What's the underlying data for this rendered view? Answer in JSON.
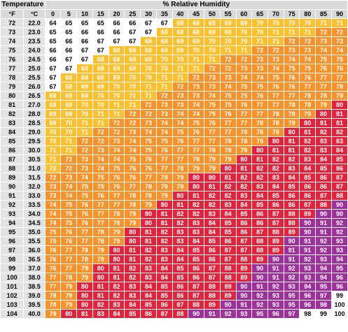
{
  "headers": {
    "temperature": "Temperature",
    "humidity": "% Relative Humidity",
    "unit_f": "°F",
    "unit_c": "°C"
  },
  "humidity_columns": [
    "0",
    "5",
    "10",
    "15",
    "20",
    "25",
    "30",
    "35",
    "40",
    "45",
    "50",
    "55",
    "60",
    "65",
    "70",
    "75",
    "80",
    "85",
    "90"
  ],
  "colors": {
    "none": "#ffffff",
    "caution": "#fcbf2e",
    "extreme_caution": "#f7922a",
    "danger": "#e1243c",
    "extreme_danger": "#9f2f9b"
  },
  "rows": [
    {
      "f": "72",
      "c": "22.0",
      "values": [
        "64",
        "65",
        "65",
        "65",
        "66",
        "66",
        "67",
        "67",
        "68",
        "68",
        "68",
        "69",
        "69",
        "70",
        "70",
        "70",
        "70",
        "71",
        "71"
      ],
      "levels": [
        0,
        0,
        0,
        0,
        0,
        0,
        0,
        0,
        1,
        1,
        1,
        1,
        1,
        1,
        1,
        1,
        1,
        1,
        1
      ]
    },
    {
      "f": "73",
      "c": "23.0",
      "values": [
        "65",
        "65",
        "66",
        "66",
        "66",
        "67",
        "67",
        "68",
        "68",
        "68",
        "69",
        "69",
        "70",
        "70",
        "71",
        "71",
        "71",
        "72",
        "72"
      ],
      "levels": [
        0,
        0,
        0,
        0,
        0,
        0,
        0,
        1,
        1,
        1,
        1,
        1,
        1,
        1,
        1,
        1,
        1,
        2,
        2
      ]
    },
    {
      "f": "74",
      "c": "23.5",
      "values": [
        "65",
        "66",
        "66",
        "67",
        "67",
        "67",
        "68",
        "68",
        "69",
        "69",
        "70",
        "70",
        "70",
        "71",
        "71",
        "72",
        "72",
        "73",
        "73"
      ],
      "levels": [
        0,
        0,
        0,
        0,
        0,
        0,
        1,
        1,
        1,
        1,
        1,
        1,
        1,
        1,
        1,
        2,
        2,
        2,
        2
      ]
    },
    {
      "f": "75",
      "c": "24.0",
      "values": [
        "66",
        "66",
        "67",
        "67",
        "68",
        "68",
        "68",
        "69",
        "69",
        "70",
        "70",
        "71",
        "71",
        "72",
        "72",
        "73",
        "73",
        "74",
        "74"
      ],
      "levels": [
        0,
        0,
        0,
        0,
        1,
        1,
        1,
        1,
        1,
        1,
        1,
        1,
        1,
        2,
        2,
        2,
        2,
        2,
        2
      ]
    },
    {
      "f": "76",
      "c": "24.5",
      "values": [
        "66",
        "67",
        "67",
        "68",
        "68",
        "69",
        "69",
        "70",
        "70",
        "71",
        "71",
        "72",
        "72",
        "73",
        "73",
        "74",
        "74",
        "75",
        "75"
      ],
      "levels": [
        0,
        0,
        0,
        1,
        1,
        1,
        1,
        1,
        1,
        1,
        1,
        2,
        2,
        2,
        2,
        2,
        2,
        2,
        2
      ]
    },
    {
      "f": "77",
      "c": "25.0",
      "values": [
        "67",
        "67",
        "68",
        "68",
        "69",
        "69",
        "70",
        "70",
        "71",
        "71",
        "72",
        "72",
        "73",
        "73",
        "74",
        "75",
        "75",
        "76",
        "76"
      ],
      "levels": [
        0,
        0,
        1,
        1,
        1,
        1,
        1,
        1,
        1,
        1,
        2,
        2,
        2,
        2,
        2,
        2,
        2,
        2,
        2
      ]
    },
    {
      "f": "78",
      "c": "25.5",
      "values": [
        "67",
        "68",
        "68",
        "69",
        "69",
        "70",
        "70",
        "71",
        "71",
        "72",
        "73",
        "73",
        "74",
        "74",
        "75",
        "76",
        "76",
        "77",
        "77"
      ],
      "levels": [
        0,
        1,
        1,
        1,
        1,
        1,
        1,
        1,
        1,
        2,
        2,
        2,
        2,
        2,
        2,
        2,
        2,
        2,
        2
      ]
    },
    {
      "f": "79",
      "c": "26.0",
      "values": [
        "67",
        "68",
        "69",
        "69",
        "70",
        "70",
        "71",
        "71",
        "72",
        "73",
        "73",
        "74",
        "75",
        "75",
        "76",
        "76",
        "77",
        "77",
        "78"
      ],
      "levels": [
        0,
        1,
        1,
        1,
        1,
        1,
        1,
        1,
        2,
        2,
        2,
        2,
        2,
        2,
        2,
        2,
        2,
        2,
        2
      ]
    },
    {
      "f": "80",
      "c": "26.5",
      "values": [
        "68",
        "69",
        "69",
        "70",
        "70",
        "71",
        "71",
        "72",
        "73",
        "73",
        "74",
        "75",
        "75",
        "76",
        "77",
        "77",
        "78",
        "78",
        "79"
      ],
      "levels": [
        1,
        1,
        1,
        1,
        1,
        1,
        1,
        2,
        2,
        2,
        2,
        2,
        2,
        2,
        2,
        2,
        2,
        2,
        2
      ]
    },
    {
      "f": "81",
      "c": "27.0",
      "values": [
        "68",
        "69",
        "70",
        "70",
        "71",
        "71",
        "72",
        "73",
        "73",
        "74",
        "75",
        "75",
        "76",
        "77",
        "77",
        "78",
        "78",
        "79",
        "80"
      ],
      "levels": [
        1,
        1,
        1,
        1,
        1,
        1,
        2,
        2,
        2,
        2,
        2,
        2,
        2,
        2,
        2,
        2,
        2,
        2,
        3
      ]
    },
    {
      "f": "82",
      "c": "28.0",
      "values": [
        "69",
        "69",
        "70",
        "71",
        "71",
        "72",
        "72",
        "73",
        "74",
        "74",
        "75",
        "76",
        "77",
        "77",
        "78",
        "78",
        "79",
        "80",
        "81"
      ],
      "levels": [
        1,
        1,
        1,
        1,
        1,
        2,
        2,
        2,
        2,
        2,
        2,
        2,
        2,
        2,
        2,
        2,
        2,
        3,
        3
      ]
    },
    {
      "f": "83",
      "c": "28.5",
      "values": [
        "69",
        "70",
        "71",
        "71",
        "72",
        "72",
        "73",
        "74",
        "74",
        "75",
        "76",
        "77",
        "77",
        "78",
        "78",
        "79",
        "80",
        "81",
        "81"
      ],
      "levels": [
        1,
        1,
        1,
        1,
        2,
        2,
        2,
        2,
        2,
        2,
        2,
        2,
        2,
        2,
        2,
        2,
        3,
        3,
        3
      ]
    },
    {
      "f": "84",
      "c": "29.0",
      "values": [
        "70",
        "70",
        "71",
        "72",
        "72",
        "73",
        "74",
        "74",
        "75",
        "76",
        "77",
        "77",
        "78",
        "78",
        "79",
        "80",
        "81",
        "82",
        "82"
      ],
      "levels": [
        1,
        1,
        1,
        2,
        2,
        2,
        2,
        2,
        2,
        2,
        2,
        2,
        2,
        2,
        2,
        3,
        3,
        3,
        3
      ]
    },
    {
      "f": "85",
      "c": "29.5",
      "values": [
        "70",
        "71",
        "72",
        "72",
        "73",
        "74",
        "75",
        "75",
        "76",
        "77",
        "77",
        "78",
        "78",
        "79",
        "80",
        "81",
        "82",
        "83",
        "83"
      ],
      "levels": [
        1,
        1,
        2,
        2,
        2,
        2,
        2,
        2,
        2,
        2,
        2,
        2,
        2,
        2,
        3,
        3,
        3,
        3,
        3
      ]
    },
    {
      "f": "86",
      "c": "30.0",
      "values": [
        "71",
        "71",
        "72",
        "73",
        "74",
        "74",
        "75",
        "76",
        "77",
        "77",
        "78",
        "78",
        "79",
        "80",
        "81",
        "81",
        "82",
        "83",
        "84"
      ],
      "levels": [
        1,
        1,
        2,
        2,
        2,
        2,
        2,
        2,
        2,
        2,
        2,
        2,
        2,
        3,
        3,
        3,
        3,
        3,
        3
      ]
    },
    {
      "f": "87",
      "c": "30.5",
      "values": [
        "71",
        "72",
        "73",
        "74",
        "74",
        "75",
        "76",
        "77",
        "77",
        "78",
        "79",
        "79",
        "80",
        "81",
        "82",
        "82",
        "83",
        "84",
        "85"
      ],
      "levels": [
        1,
        2,
        2,
        2,
        2,
        2,
        2,
        2,
        2,
        2,
        2,
        2,
        3,
        3,
        3,
        3,
        3,
        3,
        3
      ]
    },
    {
      "f": "88",
      "c": "31.0",
      "values": [
        "72",
        "72",
        "73",
        "74",
        "75",
        "76",
        "76",
        "77",
        "78",
        "79",
        "79",
        "80",
        "81",
        "82",
        "82",
        "83",
        "84",
        "85",
        "86"
      ],
      "levels": [
        1,
        2,
        2,
        2,
        2,
        2,
        2,
        2,
        2,
        2,
        2,
        3,
        3,
        3,
        3,
        3,
        3,
        3,
        3
      ]
    },
    {
      "f": "89",
      "c": "31.5",
      "values": [
        "72",
        "73",
        "74",
        "75",
        "76",
        "76",
        "77",
        "78",
        "79",
        "80",
        "80",
        "81",
        "82",
        "82",
        "83",
        "84",
        "85",
        "86",
        "87"
      ],
      "levels": [
        2,
        2,
        2,
        2,
        2,
        2,
        2,
        2,
        2,
        3,
        3,
        3,
        3,
        3,
        3,
        3,
        3,
        3,
        3
      ]
    },
    {
      "f": "90",
      "c": "32.0",
      "values": [
        "73",
        "74",
        "75",
        "75",
        "76",
        "77",
        "78",
        "79",
        "79",
        "80",
        "81",
        "82",
        "82",
        "83",
        "84",
        "85",
        "86",
        "86",
        "87"
      ],
      "levels": [
        2,
        2,
        2,
        2,
        2,
        2,
        2,
        2,
        2,
        3,
        3,
        3,
        3,
        3,
        3,
        3,
        3,
        3,
        3
      ]
    },
    {
      "f": "91",
      "c": "33.0",
      "values": [
        "73",
        "74",
        "75",
        "76",
        "77",
        "78",
        "78",
        "79",
        "80",
        "81",
        "82",
        "82",
        "83",
        "84",
        "85",
        "86",
        "86",
        "87",
        "88"
      ],
      "levels": [
        2,
        2,
        2,
        2,
        2,
        2,
        2,
        2,
        3,
        3,
        3,
        3,
        3,
        3,
        3,
        3,
        3,
        3,
        3
      ]
    },
    {
      "f": "92",
      "c": "33.5",
      "values": [
        "74",
        "75",
        "76",
        "77",
        "77",
        "78",
        "79",
        "80",
        "81",
        "82",
        "82",
        "83",
        "84",
        "85",
        "86",
        "86",
        "87",
        "88",
        "90"
      ],
      "levels": [
        2,
        2,
        2,
        2,
        2,
        2,
        2,
        3,
        3,
        3,
        3,
        3,
        3,
        3,
        3,
        3,
        3,
        3,
        4
      ]
    },
    {
      "f": "93",
      "c": "34.0",
      "values": [
        "74",
        "75",
        "76",
        "77",
        "78",
        "79",
        "80",
        "81",
        "82",
        "82",
        "83",
        "84",
        "85",
        "86",
        "87",
        "88",
        "89",
        "90",
        "90"
      ],
      "levels": [
        2,
        2,
        2,
        2,
        2,
        2,
        3,
        3,
        3,
        3,
        3,
        3,
        3,
        3,
        3,
        3,
        3,
        4,
        4
      ]
    },
    {
      "f": "94",
      "c": "34.5",
      "values": [
        "74",
        "75",
        "76",
        "77",
        "78",
        "79",
        "80",
        "81",
        "82",
        "83",
        "84",
        "85",
        "86",
        "86",
        "87",
        "88",
        "90",
        "91",
        "92"
      ],
      "levels": [
        2,
        2,
        2,
        2,
        2,
        2,
        3,
        3,
        3,
        3,
        3,
        3,
        3,
        3,
        3,
        3,
        4,
        4,
        4
      ]
    },
    {
      "f": "95",
      "c": "35.0",
      "values": [
        "75",
        "76",
        "77",
        "78",
        "79",
        "80",
        "81",
        "82",
        "83",
        "83",
        "84",
        "85",
        "86",
        "87",
        "88",
        "89",
        "90",
        "91",
        "92"
      ],
      "levels": [
        2,
        2,
        2,
        2,
        2,
        3,
        3,
        3,
        3,
        3,
        3,
        3,
        3,
        3,
        3,
        3,
        4,
        4,
        4
      ]
    },
    {
      "f": "96",
      "c": "35.5",
      "values": [
        "75",
        "76",
        "77",
        "78",
        "79",
        "80",
        "81",
        "82",
        "83",
        "84",
        "85",
        "86",
        "87",
        "88",
        "89",
        "90",
        "91",
        "92",
        "93"
      ],
      "levels": [
        2,
        2,
        2,
        2,
        2,
        3,
        3,
        3,
        3,
        3,
        3,
        3,
        3,
        3,
        3,
        4,
        4,
        4,
        4
      ]
    },
    {
      "f": "97",
      "c": "36.0",
      "values": [
        "76",
        "77",
        "78",
        "79",
        "80",
        "81",
        "82",
        "83",
        "84",
        "85",
        "86",
        "87",
        "87",
        "88",
        "89",
        "91",
        "91",
        "92",
        "93"
      ],
      "levels": [
        2,
        2,
        2,
        2,
        3,
        3,
        3,
        3,
        3,
        3,
        3,
        3,
        3,
        3,
        3,
        4,
        4,
        4,
        4
      ]
    },
    {
      "f": "98",
      "c": "36.5",
      "values": [
        "76",
        "77",
        "78",
        "79",
        "80",
        "81",
        "82",
        "83",
        "84",
        "85",
        "86",
        "87",
        "88",
        "89",
        "90",
        "91",
        "92",
        "93",
        "94"
      ],
      "levels": [
        2,
        2,
        2,
        2,
        3,
        3,
        3,
        3,
        3,
        3,
        3,
        3,
        3,
        3,
        4,
        4,
        4,
        4,
        4
      ]
    },
    {
      "f": "99",
      "c": "37.0",
      "values": [
        "76",
        "77",
        "79",
        "80",
        "81",
        "82",
        "83",
        "84",
        "85",
        "86",
        "87",
        "88",
        "89",
        "90",
        "91",
        "92",
        "93",
        "94",
        "95"
      ],
      "levels": [
        2,
        2,
        2,
        3,
        3,
        3,
        3,
        3,
        3,
        3,
        3,
        3,
        3,
        4,
        4,
        4,
        4,
        4,
        4
      ]
    },
    {
      "f": "100",
      "c": "38.0",
      "values": [
        "77",
        "78",
        "79",
        "80",
        "81",
        "82",
        "83",
        "84",
        "85",
        "86",
        "87",
        "88",
        "89",
        "90",
        "91",
        "92",
        "93",
        "94",
        "96"
      ],
      "levels": [
        2,
        2,
        2,
        3,
        3,
        3,
        3,
        3,
        3,
        3,
        3,
        3,
        3,
        4,
        4,
        4,
        4,
        4,
        4
      ]
    },
    {
      "f": "101",
      "c": "38.5",
      "values": [
        "77",
        "79",
        "80",
        "81",
        "82",
        "83",
        "84",
        "85",
        "86",
        "87",
        "88",
        "89",
        "90",
        "91",
        "92",
        "93",
        "94",
        "95",
        "96"
      ],
      "levels": [
        2,
        2,
        3,
        3,
        3,
        3,
        3,
        3,
        3,
        3,
        3,
        3,
        4,
        4,
        4,
        4,
        4,
        4,
        4
      ]
    },
    {
      "f": "102",
      "c": "39.0",
      "values": [
        "78",
        "79",
        "80",
        "81",
        "82",
        "83",
        "84",
        "85",
        "86",
        "87",
        "88",
        "89",
        "90",
        "92",
        "93",
        "95",
        "96",
        "97",
        "99"
      ],
      "levels": [
        2,
        2,
        3,
        3,
        3,
        3,
        3,
        3,
        3,
        3,
        3,
        3,
        4,
        4,
        4,
        4,
        4,
        4,
        0
      ]
    },
    {
      "f": "103",
      "c": "39.5",
      "values": [
        "78",
        "79",
        "80",
        "82",
        "83",
        "84",
        "85",
        "86",
        "87",
        "88",
        "89",
        "90",
        "91",
        "92",
        "93",
        "95",
        "96",
        "98",
        "100"
      ],
      "levels": [
        2,
        2,
        3,
        3,
        3,
        3,
        3,
        3,
        3,
        3,
        3,
        4,
        4,
        4,
        4,
        4,
        4,
        4,
        0
      ]
    },
    {
      "f": "104",
      "c": "40.0",
      "values": [
        "79",
        "80",
        "81",
        "83",
        "84",
        "85",
        "86",
        "87",
        "88",
        "90",
        "91",
        "92",
        "93",
        "95",
        "96",
        "97",
        "98",
        "99",
        "100"
      ],
      "levels": [
        2,
        3,
        3,
        3,
        3,
        3,
        3,
        3,
        3,
        4,
        4,
        4,
        4,
        4,
        4,
        4,
        0,
        0,
        0
      ]
    }
  ]
}
